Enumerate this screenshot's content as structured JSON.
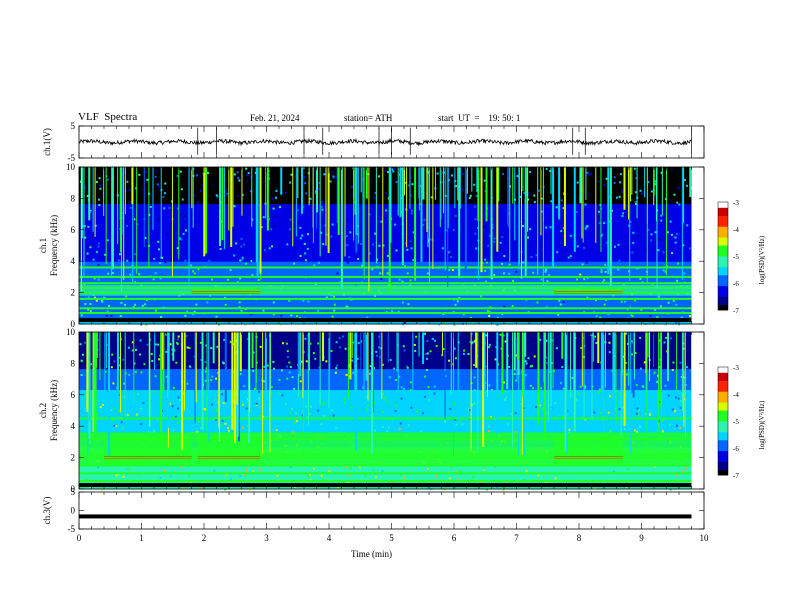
{
  "header": {
    "title": "VLF  Spectra",
    "date": "Feb. 21, 2024",
    "station": "station= ATH",
    "start": "start  UT  =    19: 50: 1"
  },
  "chart_data": [
    {
      "type": "line",
      "panel": "ch1-waveform",
      "ylabel": "ch.1(V)",
      "ylim": [
        -5,
        5
      ],
      "y_ticks": [
        "5",
        "-5"
      ],
      "xlim": [
        0,
        10
      ],
      "x_extent_min": 9.8,
      "series": [
        {
          "baseline": 0,
          "noise_amplitude": 0.6,
          "spike_times": [
            1.9,
            2.2,
            3.6,
            3.9,
            4.8,
            5.0,
            5.3,
            7.9,
            8.1,
            9.8
          ]
        }
      ]
    },
    {
      "type": "heatmap",
      "panel": "ch1-spectrogram",
      "ylabel": "Frequency  (kHz)",
      "channel_label": "ch.1",
      "ylim": [
        0,
        10
      ],
      "y_ticks": [
        "0",
        "2",
        "4",
        "6",
        "8",
        "10"
      ],
      "xlim": [
        0,
        10
      ],
      "x_extent_min": 9.8,
      "colorbar": {
        "label": "log(PSD)(V²/Hz)",
        "range": [
          -7,
          -3
        ],
        "ticks": [
          "-3",
          "-4",
          "-5",
          "-6",
          "-7"
        ]
      },
      "features": {
        "lines_khz": [
          0.3,
          0.7,
          1.0,
          1.6,
          2.0,
          2.3,
          2.6,
          3.0,
          3.6
        ],
        "elevated_band_khz": [
          1.8,
          2.5
        ],
        "elevated_intervals_min": [
          [
            1.8,
            2.9
          ],
          [
            7.6,
            8.7
          ]
        ],
        "background_level": -6.2
      }
    },
    {
      "type": "heatmap",
      "panel": "ch2-spectrogram",
      "ylabel": "Frequency  (kHz)",
      "channel_label": "ch.2",
      "ylim": [
        0,
        10
      ],
      "y_ticks": [
        "0",
        "2",
        "4",
        "6",
        "8",
        "10"
      ],
      "xlim": [
        0,
        10
      ],
      "x_extent_min": 9.8,
      "colorbar": {
        "label": "log(PSD)(V²/Hz)",
        "range": [
          -7,
          -3
        ],
        "ticks": [
          "-3",
          "-4",
          "-5",
          "-6",
          "-7"
        ]
      },
      "features": {
        "lines_khz": [
          0.5,
          1.0,
          1.5,
          2.0,
          2.2,
          3.2,
          3.5,
          4.5
        ],
        "elevated_band_khz": [
          1.5,
          3.6
        ],
        "elevated_intervals_min": [
          [
            0.4,
            1.8
          ],
          [
            1.9,
            2.9
          ],
          [
            7.6,
            8.7
          ]
        ],
        "background_level": -5.6
      }
    },
    {
      "type": "line",
      "panel": "ch3-waveform",
      "ylabel": "ch.3(V)",
      "xlabel": "Time  (min)",
      "ylim": [
        -5,
        5
      ],
      "y_ticks": [
        "5",
        "0",
        "-5"
      ],
      "xlim": [
        0,
        10
      ],
      "x_ticks": [
        "0",
        "1",
        "2",
        "3",
        "4",
        "5",
        "6",
        "7",
        "8",
        "9",
        "10"
      ],
      "x_extent_min": 9.8,
      "series": [
        {
          "baseline": -1.6,
          "noise_amplitude": 0.0
        }
      ]
    }
  ],
  "colors": {
    "colormap": [
      "#000000",
      "#00008a",
      "#0000e6",
      "#0066ff",
      "#00d4ff",
      "#2af5b0",
      "#20ff20",
      "#d8ff00",
      "#ffae00",
      "#ff2200",
      "#c80000",
      "#ffffff"
    ]
  }
}
